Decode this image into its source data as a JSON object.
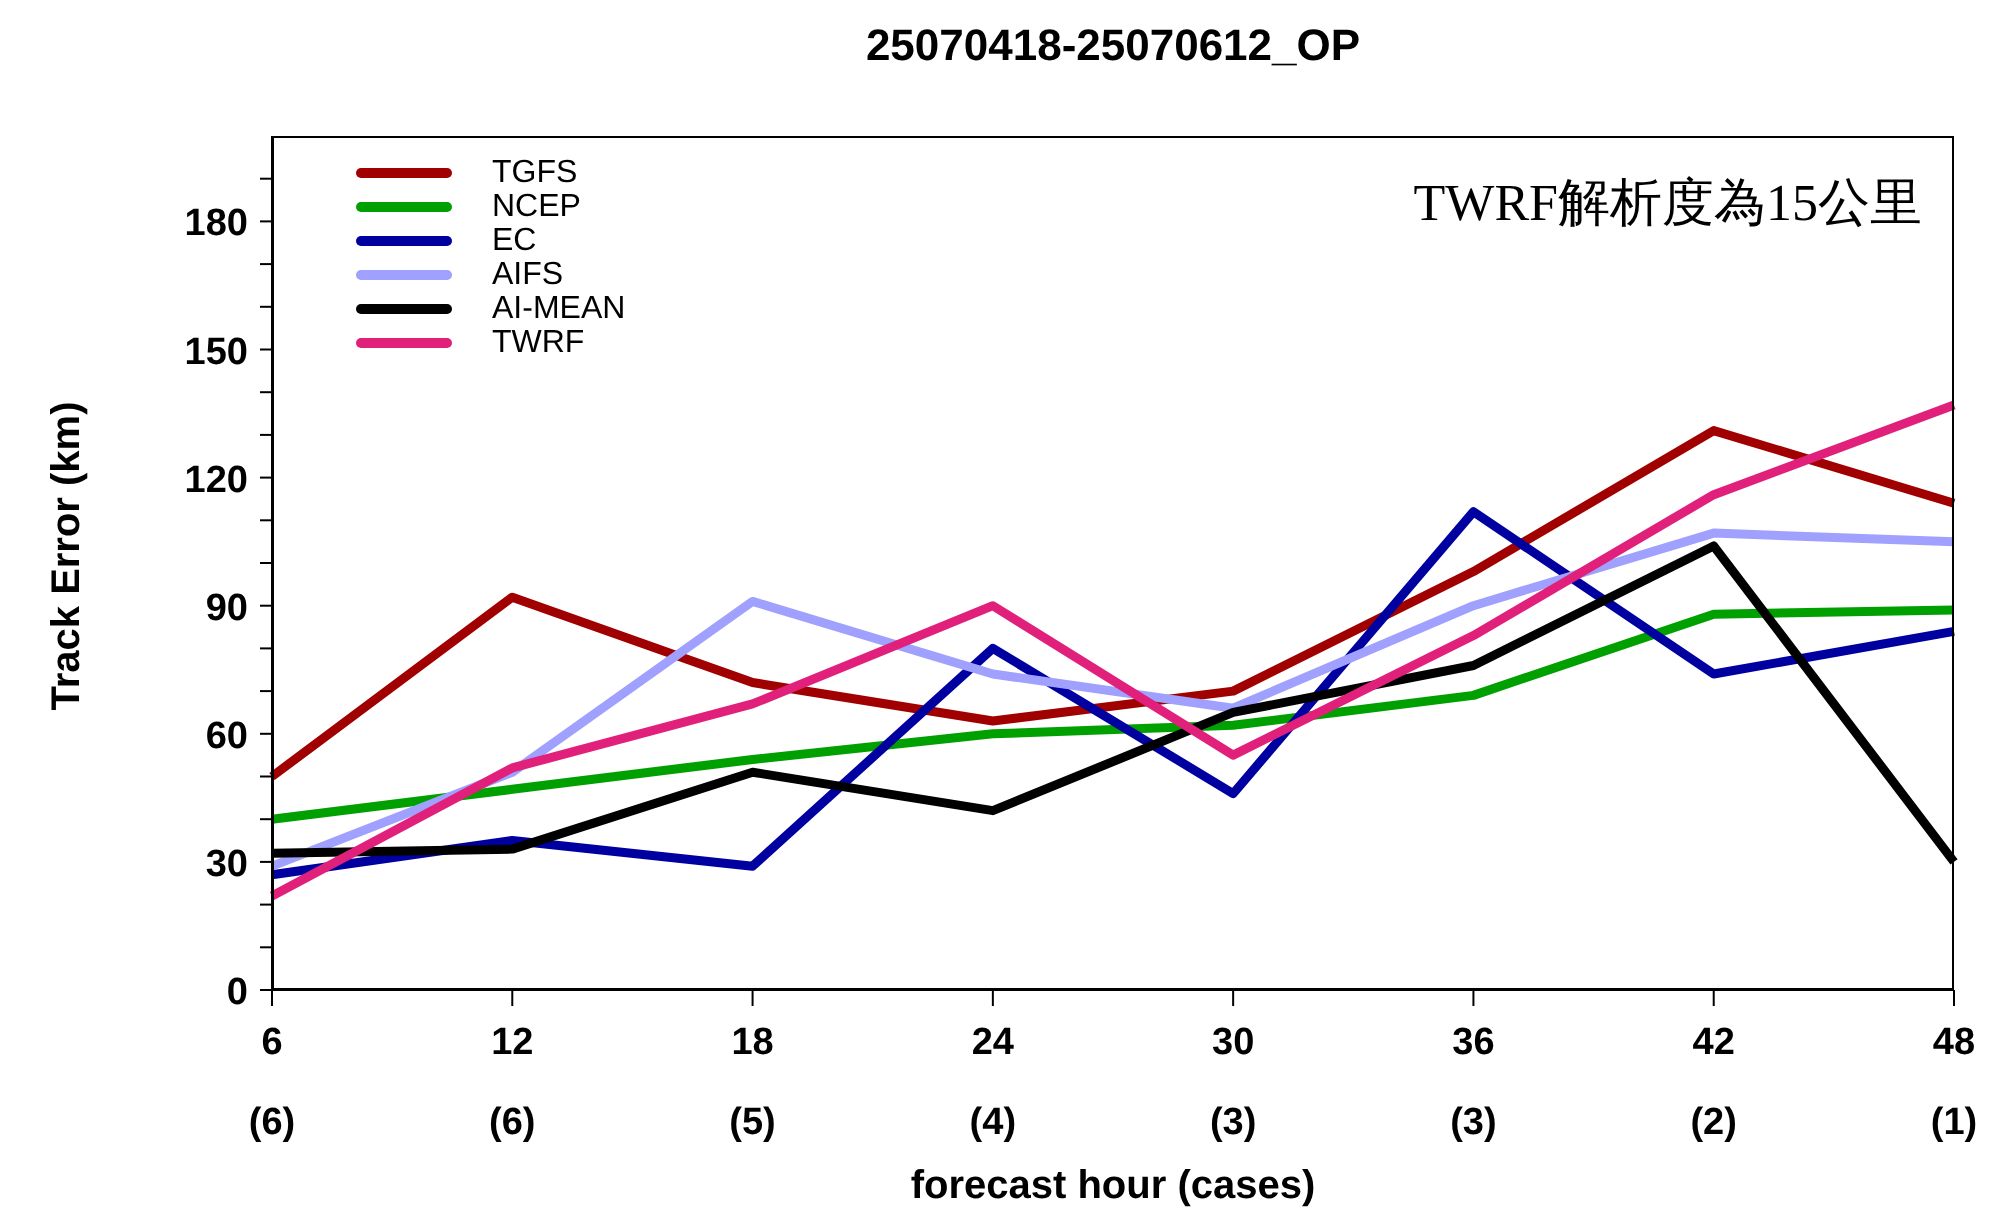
{
  "chart_data": {
    "type": "line",
    "title": "25070418-25070612_OP",
    "xlabel": "forecast hour (cases)",
    "ylabel": "Track Error (km)",
    "annotations": [
      "TWRF解析度為15公里"
    ],
    "categories": [
      "6\n(6)",
      "12\n(6)",
      "18\n(5)",
      "24\n(4)",
      "30\n(3)",
      "36\n(3)",
      "42\n(2)",
      "48\n(1)"
    ],
    "ylim": [
      0,
      200
    ],
    "yticks": [
      0,
      {
        "value": 10,
        "label": null
      },
      {
        "value": 20,
        "label": null
      },
      30,
      {
        "value": 40,
        "label": null
      },
      {
        "value": 50,
        "label": null
      },
      60,
      {
        "value": 70,
        "label": null
      },
      {
        "value": 80,
        "label": null
      },
      90,
      {
        "value": 100,
        "label": null
      },
      {
        "value": 110,
        "label": null
      },
      120,
      {
        "value": 130,
        "label": null
      },
      {
        "value": 140,
        "label": null
      },
      150,
      {
        "value": 160,
        "label": null
      },
      {
        "value": 170,
        "label": null
      },
      180,
      {
        "value": 190,
        "label": null
      }
    ],
    "legend": "top left",
    "line_style": "solid",
    "series": [
      {
        "name": "TGFS",
        "color": "#a00000",
        "values": [
          50,
          92,
          72,
          63,
          70,
          98,
          131,
          114
        ]
      },
      {
        "name": "NCEP",
        "color": "#00a000",
        "values": [
          40,
          47,
          54,
          60,
          62,
          69,
          88,
          89
        ]
      },
      {
        "name": "EC",
        "color": "#0000a0",
        "values": [
          27,
          35,
          29,
          80,
          46,
          112,
          74,
          84
        ]
      },
      {
        "name": "AIFS",
        "color": "#a0a0ff",
        "values": [
          29,
          51,
          91,
          74,
          66,
          90,
          107,
          105
        ]
      },
      {
        "name": "AI-MEAN",
        "color": "#000000",
        "values": [
          32,
          33,
          51,
          42,
          65,
          76,
          104,
          30
        ]
      },
      {
        "name": "TWRF",
        "color": "#e0207a",
        "values": [
          22,
          52,
          67,
          90,
          55,
          83,
          116,
          137
        ]
      }
    ]
  }
}
